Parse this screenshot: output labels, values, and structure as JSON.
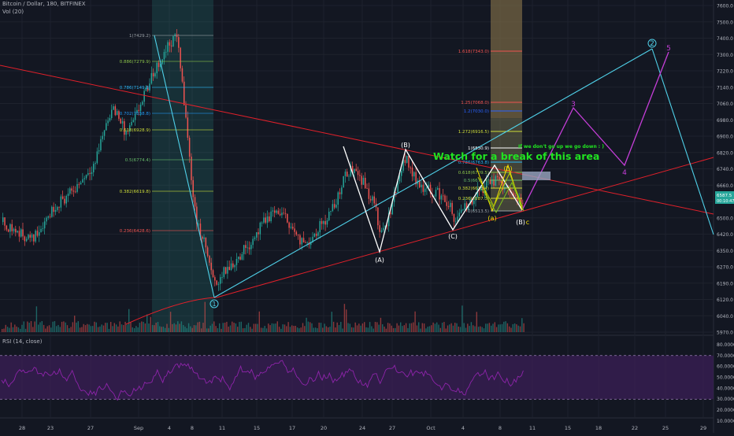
{
  "header": {
    "symbol_line": "Bitcoin / Dollar, 180, BITFINEX",
    "volume_label": "Vol (20)",
    "rsi_label": "RSI (14, close)"
  },
  "annotations": {
    "watch_text": "Watch for a break of this area",
    "note_text": "If we don't go up we go down : )"
  },
  "colors": {
    "background": "#131722",
    "up": "#26a69a",
    "down": "#ef5350",
    "trend_red": "#e0202a",
    "cyan": "#4fd0e8",
    "magenta": "#c53ed8",
    "yellow": "#f5e100",
    "green_text": "#21e321",
    "rsi_line": "#8e24aa",
    "rsi_band": "#3b1f57"
  },
  "chart_data": [
    {
      "type": "line",
      "title": "Bitcoin / Dollar, 180, BITFINEX",
      "ylim": [
        5900,
        7620
      ],
      "price_axis": {
        "ticks": [
          "7600.0",
          "7500.0",
          "7400.0",
          "7300.0",
          "7220.0",
          "7140.0",
          "7060.0",
          "6980.0",
          "6900.0",
          "6820.0",
          "6740.0",
          "6660.0",
          "6580.0",
          "6500.0",
          "6420.0",
          "6350.0",
          "6270.0",
          "6190.0",
          "6120.0",
          "6040.0",
          "5970.0"
        ],
        "current_price": "6587.5",
        "countdown": "00:10:47"
      },
      "time_axis": [
        "28",
        "23",
        "27",
        "Sep",
        "4",
        "8",
        "11",
        "15",
        "17",
        "20",
        "24",
        "27",
        "Oct",
        "4",
        "8",
        "11",
        "15",
        "18",
        "22",
        "25",
        "29"
      ],
      "waves": {
        "labels": [
          "1",
          "(A)",
          "(B)",
          "(C)",
          "(a)",
          "(b)",
          "(B)",
          "c",
          "2",
          "3",
          "4",
          "5"
        ]
      },
      "fib_left": [
        {
          "label": "1(7429.2)",
          "color": "#9aa0a6"
        },
        {
          "label": "0.886(7279.9)",
          "color": "#8bc34a"
        },
        {
          "label": "0.786(7149.8)",
          "color": "#29b6f6"
        },
        {
          "label": "0.702(7038.8)",
          "color": "#2196f3"
        },
        {
          "label": "0.618(6928.9)",
          "color": "#cddc39"
        },
        {
          "label": "0.5(6774.4)",
          "color": "#66bb6a"
        },
        {
          "label": "0.382(6619.8)",
          "color": "#cddc39"
        },
        {
          "label": "0.236(6428.6)",
          "color": "#ef5350"
        }
      ],
      "fib_right": [
        {
          "label": "1.618(7343.0)",
          "color": "#ef5350"
        },
        {
          "label": "1.25(7068.0)",
          "color": "#ef5350"
        },
        {
          "label": "1.2(7030.0)",
          "color": "#2962ff"
        },
        {
          "label": "1.272(6916.5)",
          "color": "#cddc39"
        },
        {
          "label": "1(6830.9)",
          "color": "#ffffff"
        },
        {
          "label": "0.786(6763.8)",
          "color": "#29b6f6"
        },
        {
          "label": "0.618(6709.5)",
          "color": "#8bc34a"
        },
        {
          "label": "0.5(6671.4)",
          "color": "#66bb6a"
        },
        {
          "label": "0.382(6633.4)",
          "color": "#cddc39"
        },
        {
          "label": "0.236(6587.3)",
          "color": "#cddc39"
        },
        {
          "label": "0(6513.5)",
          "color": "#9aa0a6"
        }
      ]
    },
    {
      "type": "line",
      "title": "RSI (14, close)",
      "ylim": [
        15,
        85
      ],
      "ticks": [
        "80.0000",
        "70.0000",
        "60.0000",
        "50.0000",
        "40.0000",
        "30.0000",
        "20.0000",
        "10.0000"
      ],
      "band": [
        30,
        70
      ]
    }
  ]
}
